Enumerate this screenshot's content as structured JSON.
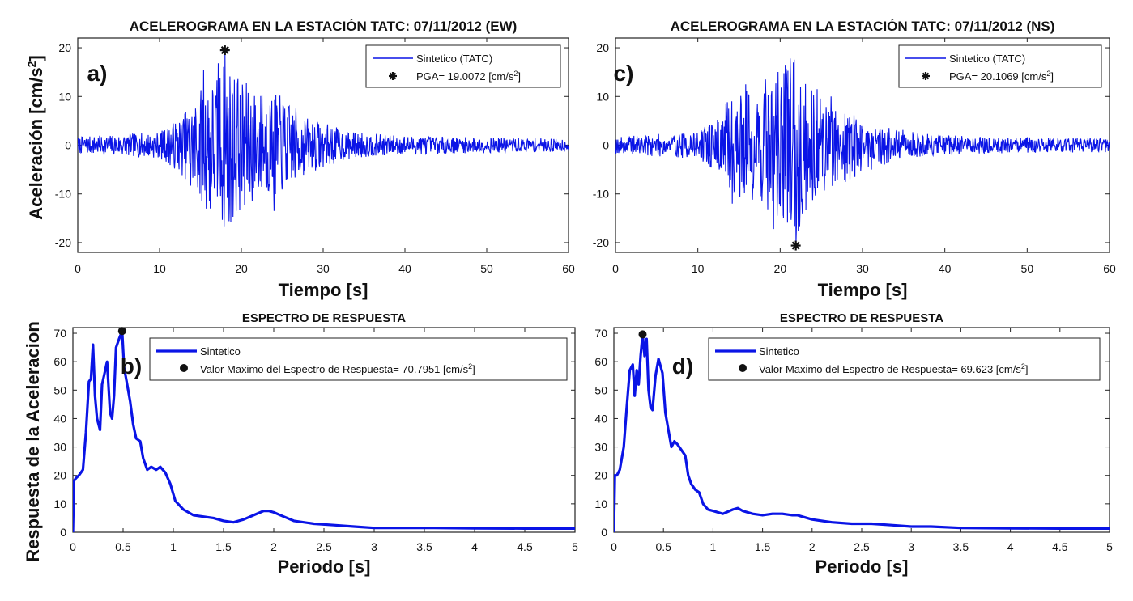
{
  "figure": {
    "ylabel_top": "Aceleración [cm/s",
    "ylabel_top_sup": "2",
    "ylabel_top_close": "]",
    "ylabel_bottom": "Respuesta de la Aceleracion"
  },
  "chart_data": [
    {
      "id": "a",
      "type": "line",
      "panel_label": "a)",
      "title": "ACELEROGRAMA EN LA ESTACIÓN TATC: 07/11/2012 (EW)",
      "xlabel": "Tiempo [s]",
      "xlim": [
        0,
        60
      ],
      "ylim": [
        -22,
        22
      ],
      "xticks": [
        0,
        10,
        20,
        30,
        40,
        50,
        60
      ],
      "yticks": [
        -20,
        -10,
        0,
        10,
        20
      ],
      "series": [
        {
          "name": "Sintetico (TATC)",
          "color": "#0a14e6"
        }
      ],
      "envelope": [
        [
          0,
          1.8
        ],
        [
          10,
          2.8
        ],
        [
          12.5,
          6
        ],
        [
          14,
          9
        ],
        [
          15.5,
          14
        ],
        [
          17,
          15
        ],
        [
          18,
          19
        ],
        [
          19,
          16
        ],
        [
          21,
          13
        ],
        [
          23,
          11
        ],
        [
          24.5,
          11
        ],
        [
          26,
          9
        ],
        [
          28,
          6
        ],
        [
          30,
          5
        ],
        [
          33,
          3
        ],
        [
          38,
          2.2
        ],
        [
          45,
          1.8
        ],
        [
          60,
          1.4
        ]
      ],
      "peaks": [
        [
          15.4,
          15.5
        ],
        [
          16.2,
          -13
        ],
        [
          17.2,
          16.8
        ],
        [
          18.0,
          19.0
        ],
        [
          18.7,
          -15.8
        ],
        [
          19.5,
          12.5
        ],
        [
          20.4,
          -12.2
        ],
        [
          24.0,
          -13.5
        ],
        [
          13.8,
          -8.3
        ],
        [
          22.5,
          10.2
        ]
      ],
      "seed": 7,
      "pga_marker": {
        "x": 18.0,
        "y": 19.0
      },
      "legend": {
        "line_label": "Sintetico (TATC)",
        "marker_label": "PGA= 19.0072 [cm/s",
        "marker_sup": "2",
        "marker_close": "]"
      }
    },
    {
      "id": "c",
      "type": "line",
      "panel_label": "c)",
      "title": "ACELEROGRAMA EN LA ESTACIÓN TATC: 07/11/2012 (NS)",
      "xlabel": "Tiempo [s]",
      "xlim": [
        0,
        60
      ],
      "ylim": [
        -22,
        22
      ],
      "xticks": [
        0,
        10,
        20,
        30,
        40,
        50,
        60
      ],
      "yticks": [
        -20,
        -10,
        0,
        10,
        20
      ],
      "series": [
        {
          "name": "Sintetico (TATC)",
          "color": "#0a14e6"
        }
      ],
      "envelope": [
        [
          0,
          1.8
        ],
        [
          10,
          3
        ],
        [
          12.5,
          6
        ],
        [
          14,
          11
        ],
        [
          16,
          12
        ],
        [
          18,
          14
        ],
        [
          19.5,
          16
        ],
        [
          21,
          17
        ],
        [
          22,
          20
        ],
        [
          23.5,
          13
        ],
        [
          25,
          11
        ],
        [
          27,
          9
        ],
        [
          30,
          6
        ],
        [
          33,
          4
        ],
        [
          38,
          2.4
        ],
        [
          45,
          1.8
        ],
        [
          60,
          1.5
        ]
      ],
      "peaks": [
        [
          19.2,
          -17.2
        ],
        [
          20.6,
          16.5
        ],
        [
          21.2,
          17.8
        ],
        [
          21.9,
          -20.1
        ],
        [
          18.2,
          13.5
        ],
        [
          15.8,
          12.5
        ],
        [
          14.2,
          -12
        ],
        [
          22.7,
          -14
        ],
        [
          24.5,
          11.5
        ],
        [
          26.2,
          10
        ]
      ],
      "seed": 19,
      "pga_marker": {
        "x": 21.9,
        "y": -20.1
      },
      "legend": {
        "line_label": "Sintetico (TATC)",
        "marker_label": "PGA= 20.1069 [cm/s",
        "marker_sup": "2",
        "marker_close": "]"
      }
    },
    {
      "id": "b",
      "type": "line",
      "panel_label": "b)",
      "title": "ESPECTRO DE RESPUESTA",
      "xlabel": "Periodo [s]",
      "xlim": [
        0,
        5
      ],
      "ylim": [
        0,
        72
      ],
      "xticks": [
        0,
        0.5,
        1,
        1.5,
        2,
        2.5,
        3,
        3.5,
        4,
        4.5,
        5
      ],
      "yticks": [
        0,
        10,
        20,
        30,
        40,
        50,
        60,
        70
      ],
      "series": [
        {
          "name": "Sintetico",
          "color": "#0a14e6",
          "x": [
            0,
            0.01,
            0.03,
            0.06,
            0.1,
            0.13,
            0.16,
            0.18,
            0.2,
            0.22,
            0.24,
            0.27,
            0.29,
            0.31,
            0.34,
            0.37,
            0.39,
            0.41,
            0.43,
            0.46,
            0.49,
            0.51,
            0.54,
            0.57,
            0.6,
            0.63,
            0.67,
            0.7,
            0.74,
            0.78,
            0.83,
            0.87,
            0.92,
            0.97,
            1.02,
            1.1,
            1.2,
            1.3,
            1.4,
            1.5,
            1.6,
            1.7,
            1.8,
            1.9,
            1.95,
            2.0,
            2.1,
            2.2,
            2.4,
            2.6,
            2.8,
            3.0,
            3.3,
            3.6,
            4.0,
            4.5,
            5.0
          ],
          "y": [
            0,
            18,
            19,
            20,
            22,
            35,
            53,
            54,
            66,
            48,
            40,
            36,
            52,
            55,
            60,
            42,
            40,
            48,
            65,
            68,
            70.8,
            58,
            52,
            46,
            38,
            33,
            32,
            26,
            22,
            23,
            22,
            23,
            21,
            17,
            11,
            8,
            6,
            5.5,
            5,
            4,
            3.5,
            4.5,
            6,
            7.5,
            7.5,
            7,
            5.5,
            4,
            3,
            2.5,
            2,
            1.5,
            1.5,
            1.5,
            1.4,
            1.3,
            1.3
          ]
        }
      ],
      "max_marker": {
        "x": 0.49,
        "y": 70.8
      },
      "legend": {
        "line_label": "Sintetico",
        "marker_label": "Valor Maximo del Espectro de Respuesta= 70.7951 [cm/s",
        "marker_sup": "2",
        "marker_close": "]"
      }
    },
    {
      "id": "d",
      "type": "line",
      "panel_label": "d)",
      "title": "ESPECTRO DE RESPUESTA",
      "xlabel": "Periodo [s]",
      "xlim": [
        0,
        5
      ],
      "ylim": [
        0,
        72
      ],
      "xticks": [
        0,
        0.5,
        1,
        1.5,
        2,
        2.5,
        3,
        3.5,
        4,
        4.5,
        5
      ],
      "yticks": [
        0,
        10,
        20,
        30,
        40,
        50,
        60,
        70
      ],
      "series": [
        {
          "name": "Sintetico",
          "color": "#0a14e6",
          "x": [
            0,
            0.01,
            0.03,
            0.06,
            0.1,
            0.13,
            0.16,
            0.19,
            0.21,
            0.23,
            0.25,
            0.27,
            0.29,
            0.31,
            0.33,
            0.35,
            0.37,
            0.39,
            0.42,
            0.45,
            0.49,
            0.52,
            0.55,
            0.58,
            0.61,
            0.64,
            0.68,
            0.72,
            0.75,
            0.78,
            0.82,
            0.86,
            0.9,
            0.95,
            1.0,
            1.1,
            1.2,
            1.25,
            1.3,
            1.4,
            1.5,
            1.6,
            1.7,
            1.8,
            1.85,
            1.9,
            2.0,
            2.2,
            2.4,
            2.6,
            2.8,
            3.0,
            3.2,
            3.5,
            4.0,
            4.5,
            5.0
          ],
          "y": [
            0,
            20,
            20,
            22,
            30,
            44,
            57,
            59,
            48,
            57,
            52,
            62,
            69.6,
            62,
            68,
            50,
            44,
            43,
            55,
            61,
            56,
            42,
            36,
            30,
            32,
            31,
            29,
            27,
            20,
            17,
            15,
            14,
            10,
            8,
            7.5,
            6.5,
            8,
            8.5,
            7.5,
            6.5,
            6,
            6.5,
            6.5,
            6,
            6,
            5.5,
            4.5,
            3.5,
            3,
            3,
            2.5,
            2,
            2,
            1.5,
            1.4,
            1.3,
            1.3
          ]
        }
      ],
      "max_marker": {
        "x": 0.29,
        "y": 69.6
      },
      "legend": {
        "line_label": "Sintetico",
        "marker_label": "Valor Maximo del Espectro de Respuesta= 69.623 [cm/s",
        "marker_sup": "2",
        "marker_close": "]"
      }
    }
  ]
}
